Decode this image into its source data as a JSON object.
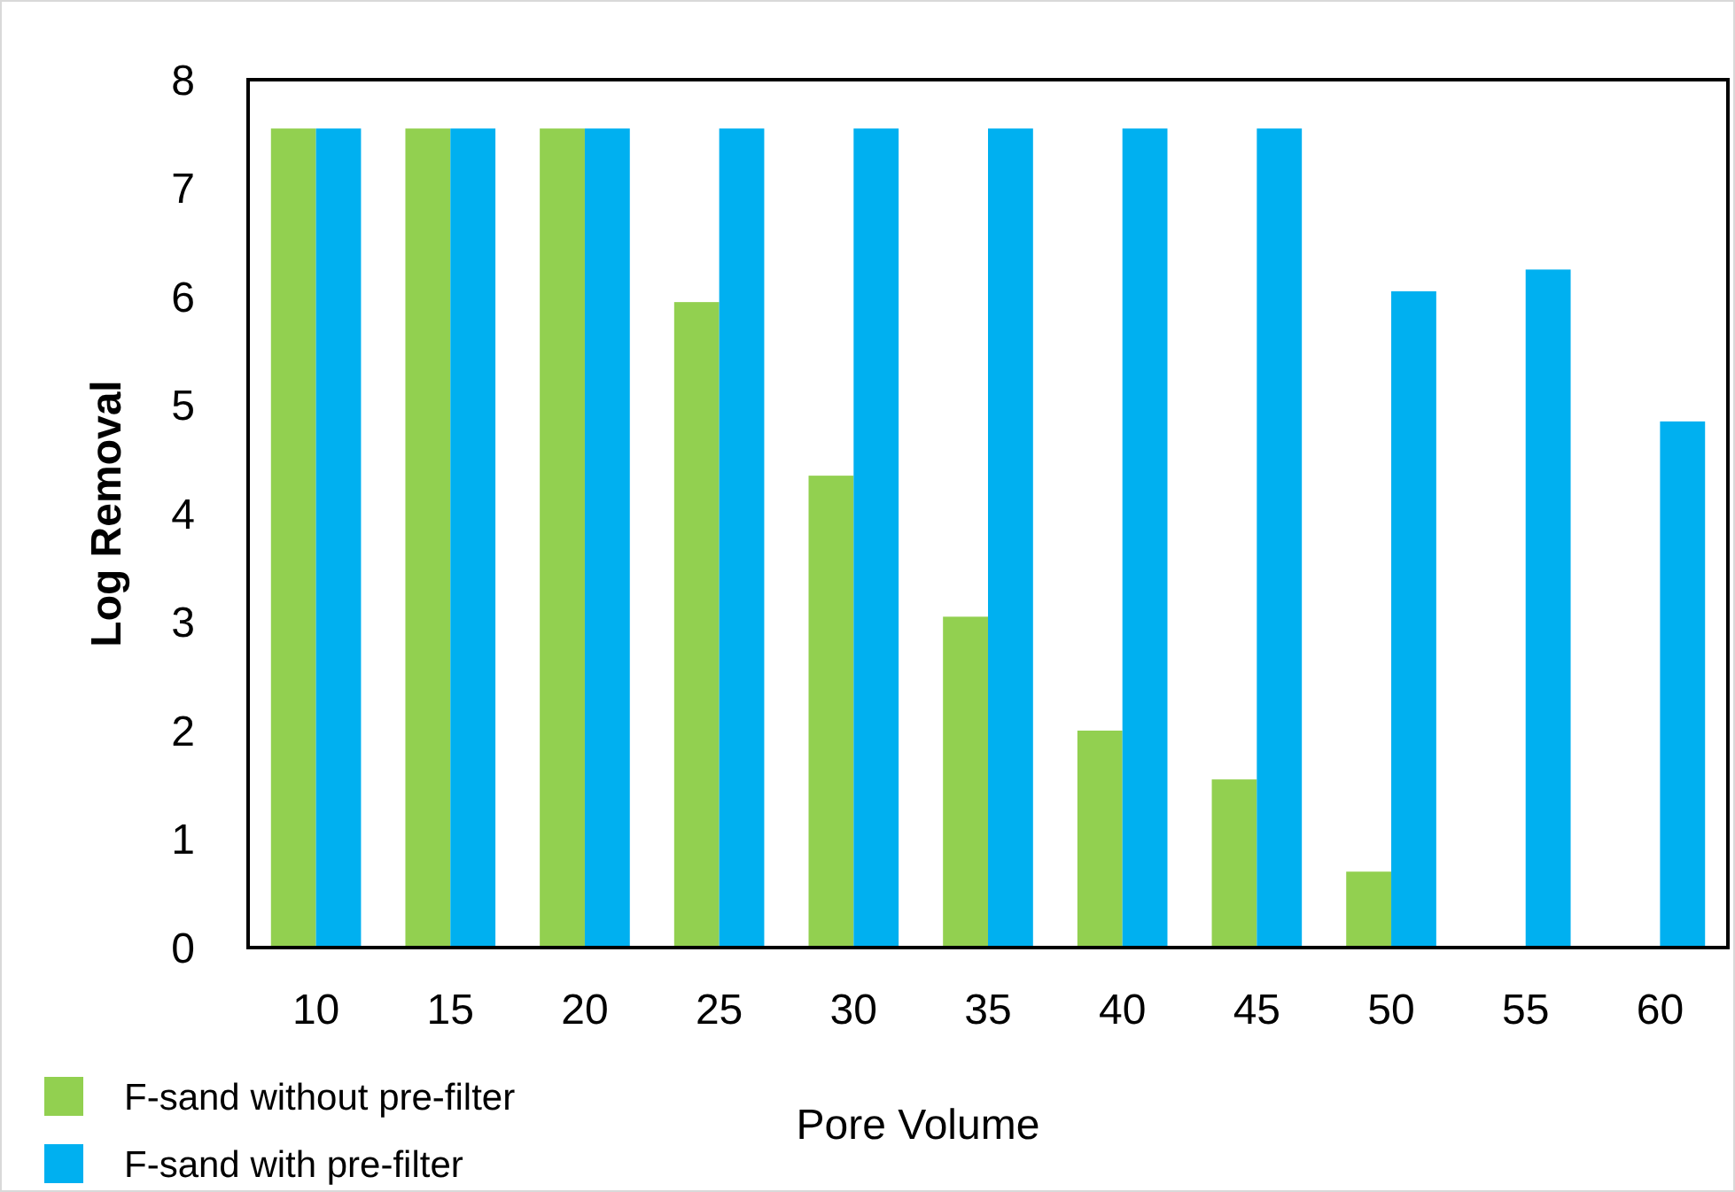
{
  "chart_data": {
    "type": "bar",
    "xlabel": "Pore Volume",
    "ylabel": "Log Removal",
    "categories": [
      "10",
      "15",
      "20",
      "25",
      "30",
      "35",
      "40",
      "45",
      "50",
      "55",
      "60"
    ],
    "series": [
      {
        "name": "F-sand without pre-filter",
        "color": "#92d050",
        "values": [
          7.55,
          7.55,
          7.55,
          5.95,
          4.35,
          3.05,
          2.0,
          1.55,
          0.7,
          null,
          null
        ]
      },
      {
        "name": "F-sand with pre-filter",
        "color": "#00b0f0",
        "values": [
          7.55,
          7.55,
          7.55,
          7.55,
          7.55,
          7.55,
          7.55,
          7.55,
          6.05,
          6.25,
          4.85
        ]
      }
    ],
    "ylim": [
      0,
      8
    ],
    "yticks": [
      0,
      1,
      2,
      3,
      4,
      5,
      6,
      7,
      8
    ],
    "grid": false,
    "legend": "bottom left"
  }
}
